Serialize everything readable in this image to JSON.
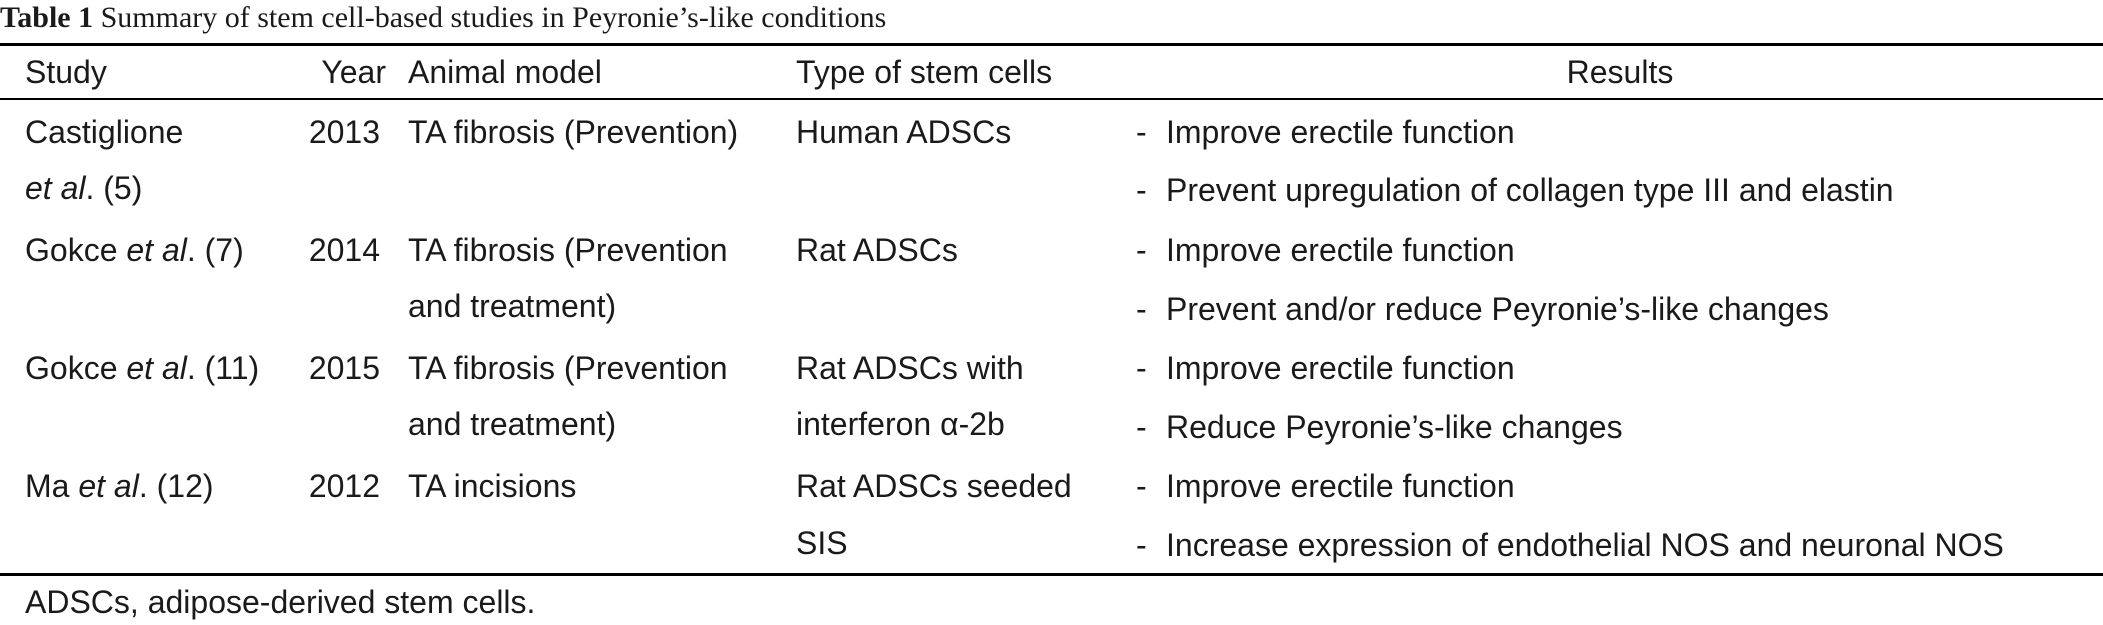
{
  "caption": {
    "label": "Table 1",
    "text": " Summary of stem cell-based studies in Peyronie’s-like conditions"
  },
  "headers": {
    "study": "Study",
    "year": "Year",
    "model": "Animal model",
    "type": "Type of stem cells",
    "results": "Results"
  },
  "rows": [
    {
      "study_line1_pre": "Castiglione",
      "study_line2_em": "et al",
      "study_line2_post": ". (5)",
      "year": "2013",
      "model_line1": "TA fibrosis (Prevention)",
      "model_line2": "",
      "type_line1": "Human ADSCs",
      "type_line2": "",
      "results": [
        "Improve erectile function",
        "Prevent upregulation of collagen type III and elastin"
      ]
    },
    {
      "study_pre": "Gokce ",
      "study_em": "et al",
      "study_post": ". (7)",
      "year": "2014",
      "model_line1": "TA fibrosis (Prevention",
      "model_line2": "and treatment)",
      "type_line1": "Rat ADSCs",
      "type_line2": "",
      "results": [
        "Improve erectile function",
        "Prevent and/or reduce Peyronie’s-like changes"
      ]
    },
    {
      "study_pre": "Gokce ",
      "study_em": "et al",
      "study_post": ". (11)",
      "year": "2015",
      "model_line1": "TA fibrosis (Prevention",
      "model_line2": "and treatment)",
      "type_line1": "Rat ADSCs with",
      "type_line2": "interferon α-2b",
      "results": [
        "Improve erectile function",
        "Reduce Peyronie’s-like changes"
      ]
    },
    {
      "study_pre": "Ma ",
      "study_em": "et al",
      "study_post": ". (12)",
      "year": "2012",
      "model_line1": "TA incisions",
      "model_line2": "",
      "type_line1": "Rat ADSCs seeded",
      "type_line2": "SIS",
      "results": [
        "Improve erectile function",
        "Increase expression of endothelial NOS and neuronal NOS"
      ]
    }
  ],
  "bullet": "-",
  "footnote": "ADSCs, adipose-derived stem cells."
}
